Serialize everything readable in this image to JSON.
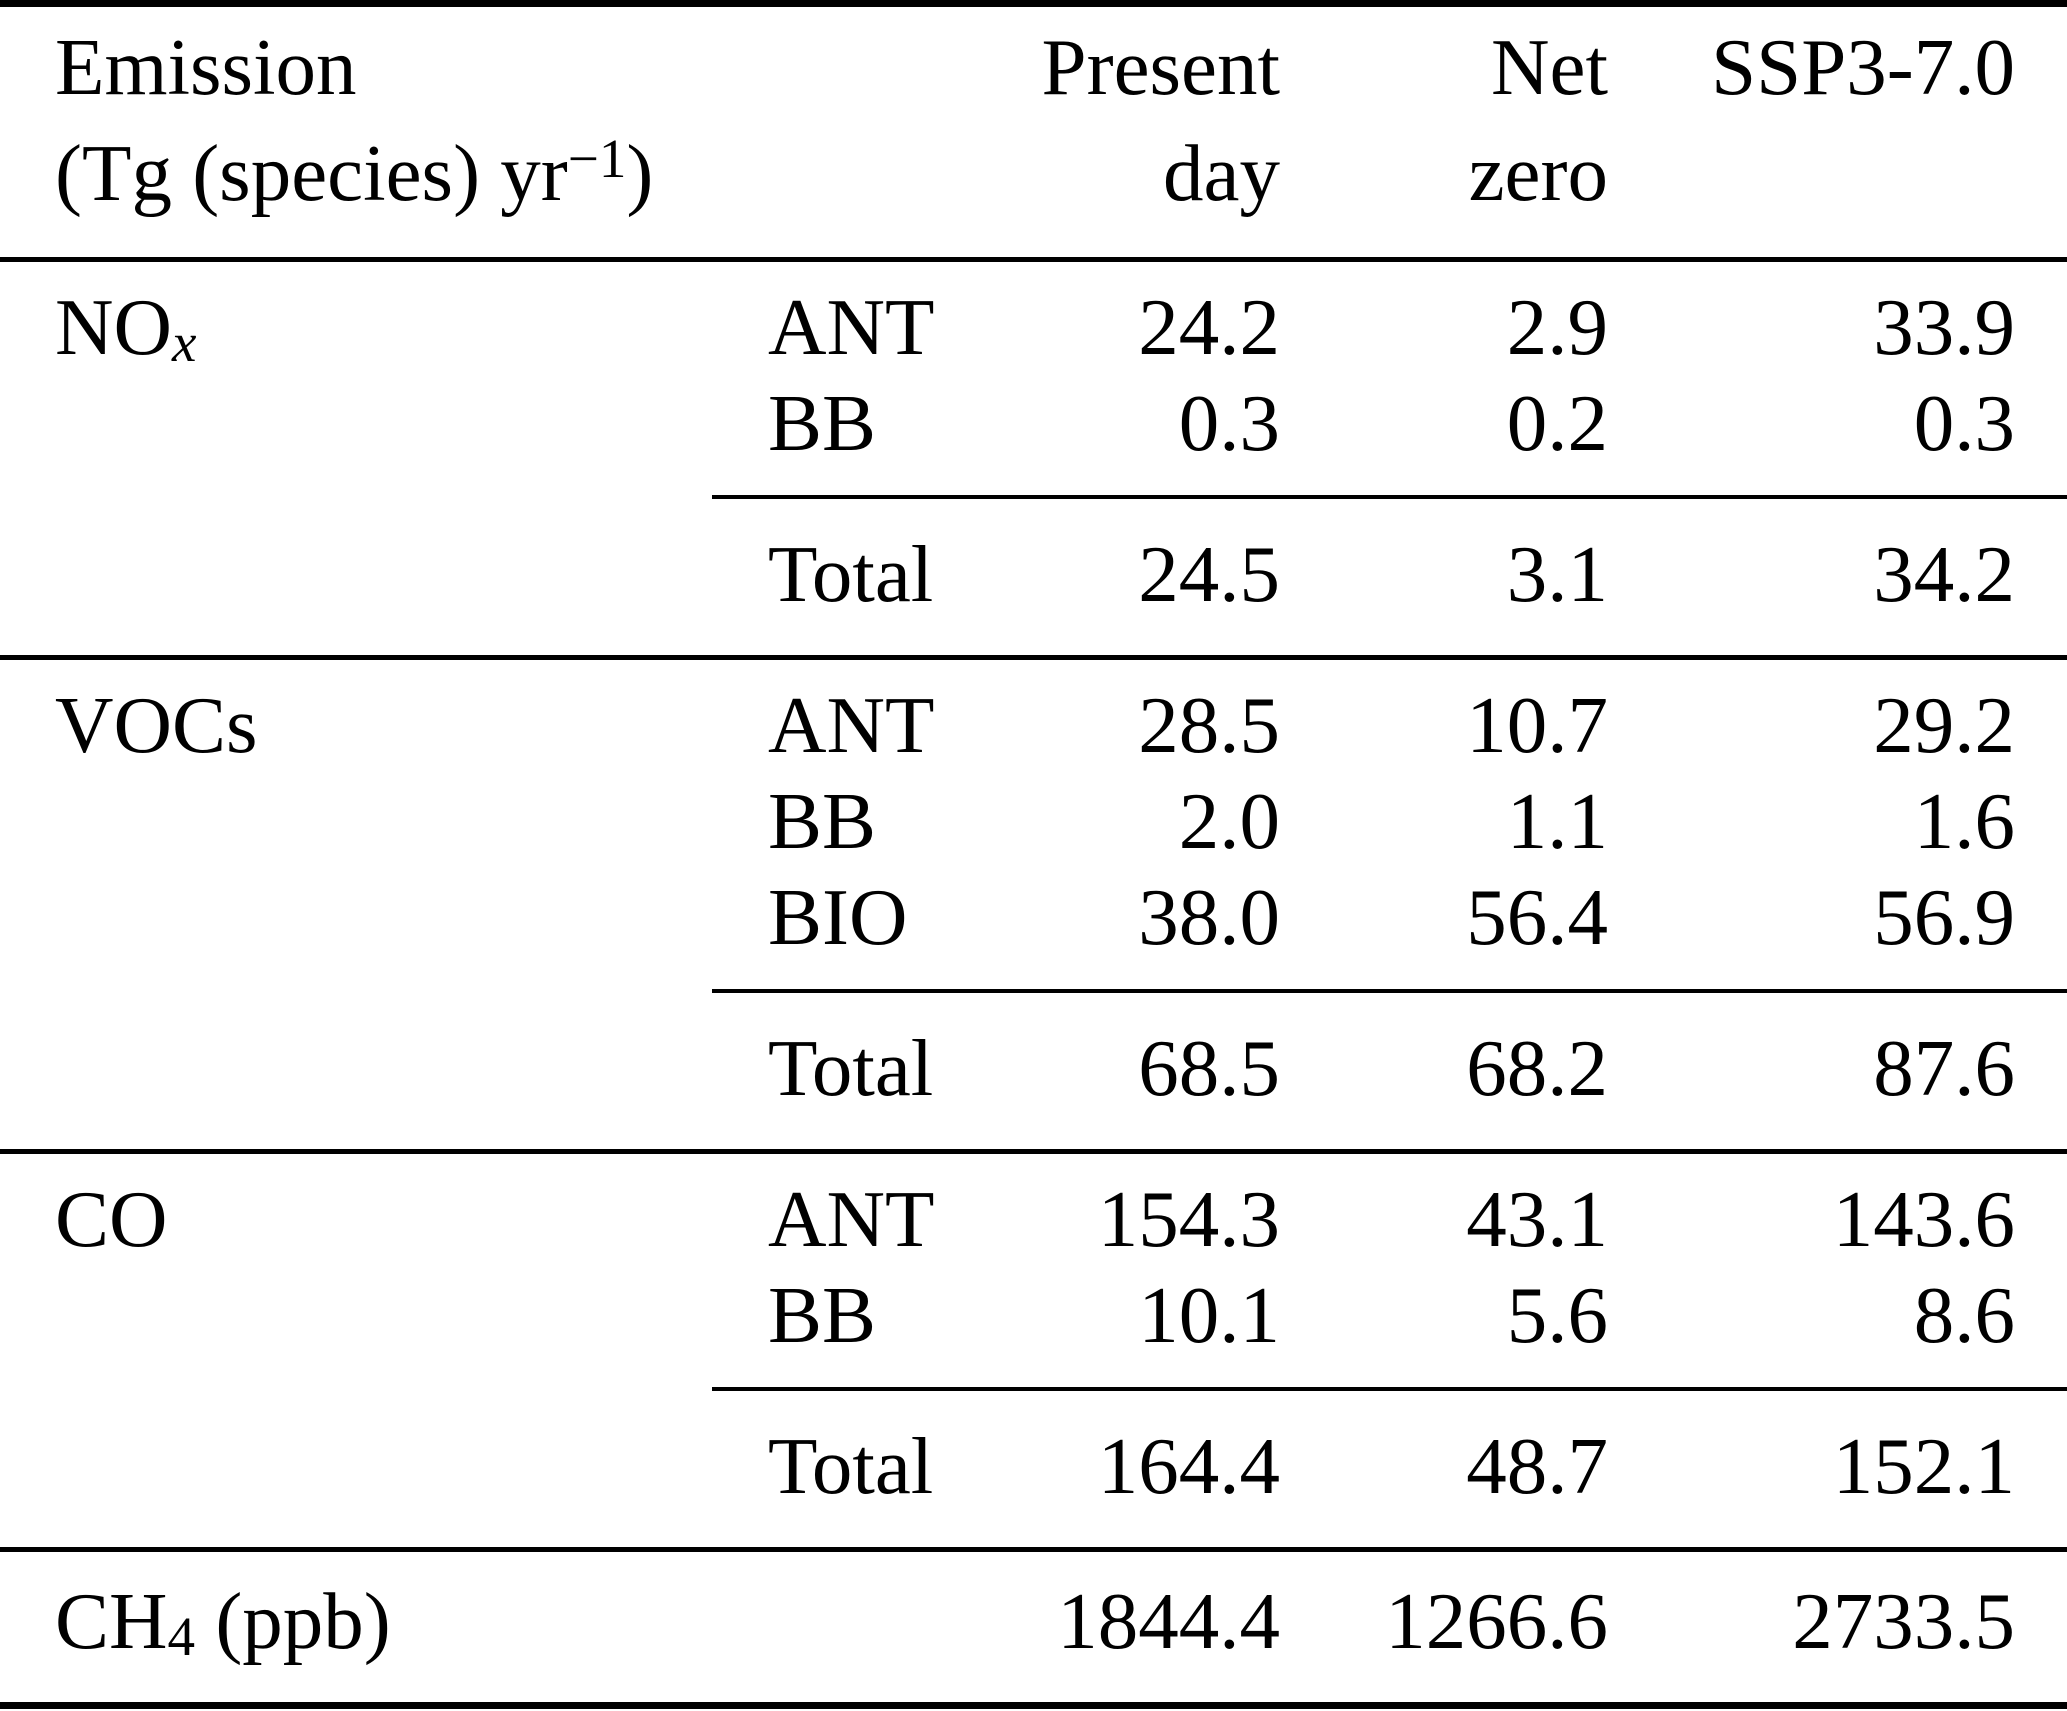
{
  "colors": {
    "background": "#ffffff",
    "text": "#000000",
    "rule": "#000000"
  },
  "table": {
    "header": {
      "emission_line1": "Emission",
      "unit_prefix": "(Tg (species) yr",
      "unit_superscript": "−1",
      "unit_suffix": ")",
      "col_present_line1": "Present",
      "col_present_line2": "day",
      "col_netzero_line1": "Net",
      "col_netzero_line2": "zero",
      "col_ssp": "SSP3-7.0"
    },
    "sections": [
      {
        "species_base": "NO",
        "species_sub": "x",
        "rows": [
          {
            "source": "ANT",
            "present_day": "24.2",
            "net_zero": "2.9",
            "ssp370": "33.9"
          },
          {
            "source": "BB",
            "present_day": "0.3",
            "net_zero": "0.2",
            "ssp370": "0.3"
          }
        ],
        "total": {
          "source": "Total",
          "present_day": "24.5",
          "net_zero": "3.1",
          "ssp370": "34.2"
        }
      },
      {
        "species_base": "VOCs",
        "rows": [
          {
            "source": "ANT",
            "present_day": "28.5",
            "net_zero": "10.7",
            "ssp370": "29.2"
          },
          {
            "source": "BB",
            "present_day": "2.0",
            "net_zero": "1.1",
            "ssp370": "1.6"
          },
          {
            "source": "BIO",
            "present_day": "38.0",
            "net_zero": "56.4",
            "ssp370": "56.9"
          }
        ],
        "total": {
          "source": "Total",
          "present_day": "68.5",
          "net_zero": "68.2",
          "ssp370": "87.6"
        }
      },
      {
        "species_base": "CO",
        "rows": [
          {
            "source": "ANT",
            "present_day": "154.3",
            "net_zero": "43.1",
            "ssp370": "143.6"
          },
          {
            "source": "BB",
            "present_day": "10.1",
            "net_zero": "5.6",
            "ssp370": "8.6"
          }
        ],
        "total": {
          "source": "Total",
          "present_day": "164.4",
          "net_zero": "48.7",
          "ssp370": "152.1"
        }
      }
    ],
    "footer": {
      "species_base": "CH",
      "species_sub": "4",
      "species_suffix": " (ppb)",
      "present_day": "1844.4",
      "net_zero": "1266.6",
      "ssp370": "2733.5"
    }
  }
}
